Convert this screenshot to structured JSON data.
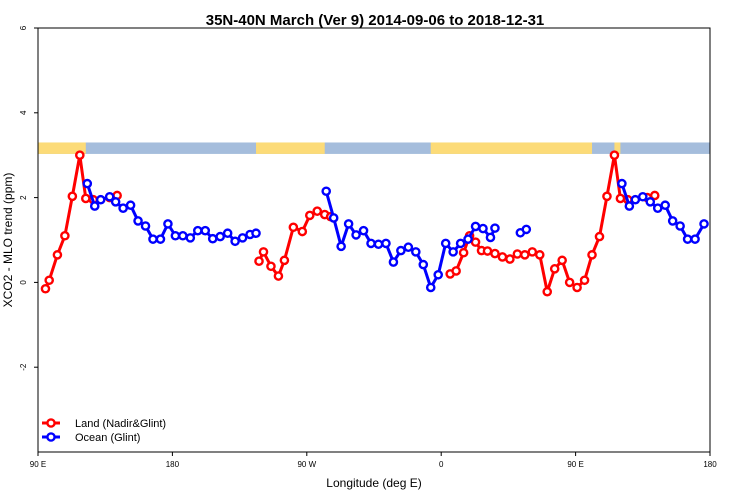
{
  "chart_data": {
    "type": "line",
    "title": "35N-40N March (Ver 9)   2014-09-06 to 2018-12-31",
    "xlabel": "Longitude (deg E)",
    "ylabel": "XCO2 - MLO trend (ppm)",
    "xlim": [
      90,
      540
    ],
    "ylim": [
      -4,
      6
    ],
    "x_ticks": [
      {
        "value": 90,
        "label": "90 E"
      },
      {
        "value": 180,
        "label": "180"
      },
      {
        "value": 270,
        "label": "90 W"
      },
      {
        "value": 360,
        "label": "0"
      },
      {
        "value": 450,
        "label": "90 E"
      },
      {
        "value": 540,
        "label": "180"
      }
    ],
    "y_ticks": [
      {
        "value": -2,
        "label": "-2"
      },
      {
        "value": 0,
        "label": "0"
      },
      {
        "value": 2,
        "label": "2"
      },
      {
        "value": 4,
        "label": "4"
      },
      {
        "value": 6,
        "label": "6"
      }
    ],
    "legend_position": "bottom-left",
    "colors": {
      "land": "#ff0000",
      "ocean": "#0000ff",
      "band_land": "#fcdb78",
      "band_ocean": "#a5bddc"
    },
    "series": [
      {
        "name": "Land (Nadir&Glint)",
        "color": "#ff0000",
        "segments": [
          [
            [
              95,
              -0.15
            ],
            [
              97.5,
              0.05
            ],
            [
              103,
              0.65
            ],
            [
              108,
              1.1
            ],
            [
              113,
              2.03
            ],
            [
              118,
              3.0
            ],
            [
              122,
              1.98
            ],
            [
              127,
              1.95
            ]
          ],
          [
            [
              138,
              2.0
            ],
            [
              143,
              2.05
            ]
          ],
          [
            [
              238,
              0.5
            ],
            [
              241,
              0.72
            ],
            [
              246,
              0.38
            ],
            [
              251,
              0.15
            ],
            [
              255,
              0.52
            ],
            [
              261,
              1.3
            ],
            [
              267,
              1.2
            ],
            [
              272,
              1.58
            ],
            [
              277,
              1.68
            ],
            [
              282,
              1.6
            ],
            [
              286,
              1.55
            ]
          ],
          [
            [
              366,
              0.2
            ],
            [
              370,
              0.27
            ],
            [
              375,
              0.7
            ],
            [
              379,
              1.1
            ],
            [
              383,
              0.95
            ],
            [
              387,
              0.75
            ],
            [
              391,
              0.74
            ],
            [
              396,
              0.68
            ],
            [
              401,
              0.6
            ],
            [
              406,
              0.55
            ],
            [
              411,
              0.67
            ],
            [
              416,
              0.65
            ],
            [
              421,
              0.72
            ],
            [
              426,
              0.65
            ],
            [
              431,
              -0.22
            ],
            [
              436,
              0.32
            ],
            [
              441,
              0.52
            ],
            [
              446,
              0.0
            ],
            [
              451,
              -0.12
            ],
            [
              456,
              0.05
            ],
            [
              461,
              0.65
            ],
            [
              466,
              1.08
            ],
            [
              471,
              2.03
            ],
            [
              476,
              3.0
            ],
            [
              480,
              1.98
            ],
            [
              485,
              1.95
            ],
            [
              498,
              2.0
            ],
            [
              503,
              2.05
            ]
          ]
        ]
      },
      {
        "name": "Ocean (Glint)",
        "color": "#0000ff",
        "segments": [
          [
            [
              123,
              2.33
            ],
            [
              128,
              1.8
            ],
            [
              132,
              1.95
            ],
            [
              138,
              2.02
            ],
            [
              142,
              1.9
            ],
            [
              147,
              1.75
            ],
            [
              152,
              1.82
            ],
            [
              157,
              1.45
            ],
            [
              162,
              1.33
            ],
            [
              167,
              1.02
            ],
            [
              172,
              1.02
            ],
            [
              177,
              1.38
            ],
            [
              182,
              1.1
            ],
            [
              187,
              1.1
            ],
            [
              192,
              1.05
            ],
            [
              197,
              1.22
            ],
            [
              202,
              1.22
            ],
            [
              207,
              1.03
            ],
            [
              212,
              1.08
            ],
            [
              217,
              1.16
            ],
            [
              222,
              0.97
            ],
            [
              227,
              1.05
            ],
            [
              232,
              1.13
            ],
            [
              236,
              1.16
            ]
          ],
          [
            [
              283,
              2.15
            ],
            [
              288,
              1.52
            ],
            [
              293,
              0.85
            ],
            [
              298,
              1.38
            ],
            [
              303,
              1.12
            ],
            [
              308,
              1.22
            ],
            [
              313,
              0.92
            ],
            [
              318,
              0.9
            ],
            [
              323,
              0.92
            ],
            [
              328,
              0.48
            ],
            [
              333,
              0.75
            ],
            [
              338,
              0.83
            ],
            [
              343,
              0.72
            ],
            [
              348,
              0.42
            ],
            [
              353,
              -0.12
            ],
            [
              358,
              0.18
            ],
            [
              363,
              0.92
            ],
            [
              368,
              0.72
            ],
            [
              373,
              0.92
            ],
            [
              378,
              1.02
            ],
            [
              383,
              1.32
            ],
            [
              388,
              1.27
            ],
            [
              393,
              1.06
            ],
            [
              396,
              1.28
            ]
          ],
          [
            [
              413,
              1.17
            ],
            [
              417,
              1.25
            ]
          ],
          [
            [
              481,
              2.33
            ],
            [
              486,
              1.8
            ],
            [
              490,
              1.95
            ],
            [
              495,
              2.02
            ],
            [
              500,
              1.9
            ],
            [
              505,
              1.75
            ],
            [
              510,
              1.82
            ],
            [
              515,
              1.45
            ],
            [
              520,
              1.33
            ],
            [
              525,
              1.02
            ],
            [
              530,
              1.02
            ],
            [
              536,
              1.38
            ]
          ]
        ]
      }
    ],
    "land_ocean_band": {
      "y_range": [
        3.03,
        3.3
      ],
      "land_longitudes": [
        [
          90,
          122
        ],
        [
          236,
          282
        ],
        [
          353,
          461
        ],
        [
          476,
          480
        ]
      ]
    }
  }
}
